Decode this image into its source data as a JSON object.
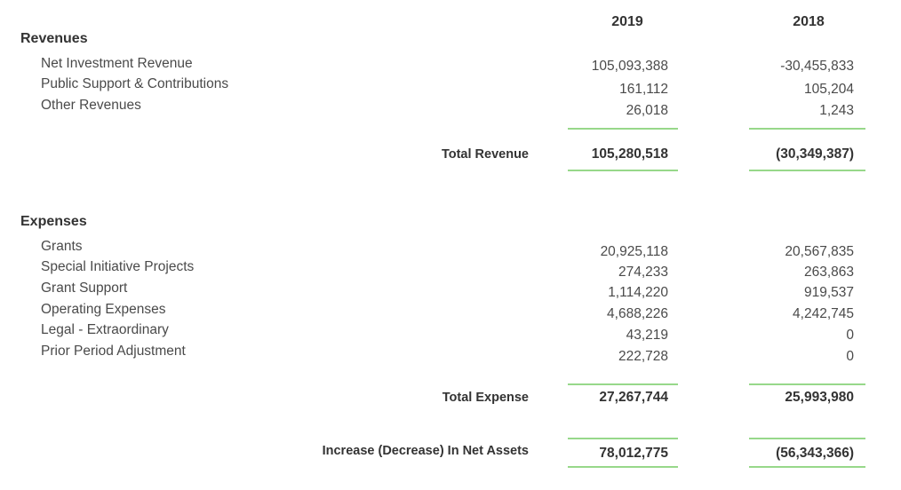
{
  "years": [
    "2019",
    "2018"
  ],
  "revenues": {
    "heading": "Revenues",
    "items": [
      {
        "label": "Net Investment Revenue",
        "v2019": "105,093,388",
        "v2018": "-30,455,833"
      },
      {
        "label": "Public Support & Contributions",
        "v2019": "161,112",
        "v2018": "105,204"
      },
      {
        "label": "Other Revenues",
        "v2019": "26,018",
        "v2018": "1,243"
      }
    ],
    "total_label": "Total Revenue",
    "total_2019": "105,280,518",
    "total_2018": "(30,349,387)"
  },
  "expenses": {
    "heading": "Expenses",
    "items": [
      {
        "label": "Grants",
        "v2019": "20,925,118",
        "v2018": "20,567,835"
      },
      {
        "label": "Special Initiative Projects",
        "v2019": "274,233",
        "v2018": "263,863"
      },
      {
        "label": "Grant Support",
        "v2019": "1,114,220",
        "v2018": "919,537"
      },
      {
        "label": "Operating Expenses",
        "v2019": "4,688,226",
        "v2018": "4,242,745"
      },
      {
        "label": "Legal - Extraordinary",
        "v2019": "43,219",
        "v2018": "0"
      },
      {
        "label": "Prior Period Adjustment",
        "v2019": "222,728",
        "v2018": "0"
      }
    ],
    "total_label": "Total Expense",
    "total_2019": "27,267,744",
    "total_2018": "25,993,980"
  },
  "net": {
    "label": "Increase (Decrease) In Net Assets",
    "v2019": "78,012,775",
    "v2018": "(56,343,366)"
  },
  "accent_color": "#97d88a"
}
